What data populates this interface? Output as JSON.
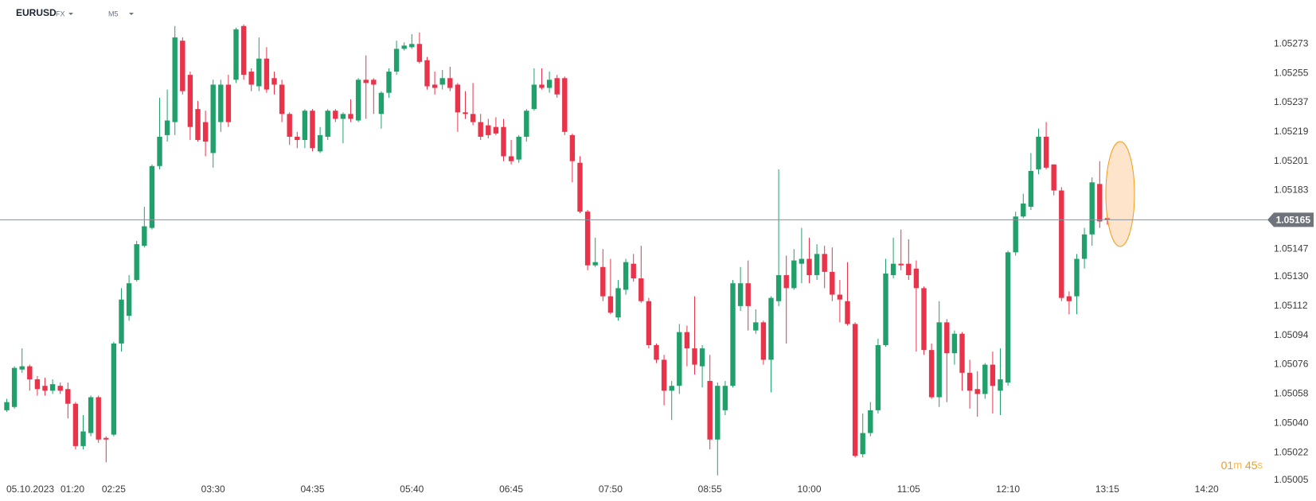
{
  "header": {
    "symbol": "EURUSD",
    "market": "FX",
    "interval": "M5"
  },
  "chart_data": {
    "type": "candlestick",
    "date_label": "05.10.2023",
    "categories": [
      null,
      "01:20",
      null,
      null,
      null,
      null,
      null,
      null,
      null,
      null,
      null,
      null,
      null,
      null,
      "02:25",
      null,
      null,
      null,
      null,
      null,
      null,
      null,
      null,
      null,
      null,
      null,
      null,
      "03:30",
      null,
      null,
      null,
      null,
      null,
      null,
      null,
      null,
      null,
      null,
      null,
      null,
      "04:35",
      null,
      null,
      null,
      null,
      null,
      null,
      null,
      null,
      null,
      null,
      null,
      null,
      "05:40",
      null,
      null,
      null,
      null,
      null,
      null,
      null,
      null,
      null,
      null,
      null,
      null,
      "06:45",
      null,
      null,
      null,
      null,
      null,
      null,
      null,
      null,
      null,
      null,
      null,
      null,
      "07:50",
      null,
      null,
      null,
      null,
      null,
      null,
      null,
      null,
      null,
      null,
      null,
      null,
      "08:55",
      null,
      null,
      null,
      null,
      null,
      null,
      null,
      null,
      null,
      null,
      null,
      null,
      "10:00",
      null,
      null,
      null,
      null,
      null,
      null,
      null,
      null,
      null,
      null,
      null,
      null,
      "11:05",
      null,
      null,
      null,
      null,
      null,
      null,
      null,
      null,
      null,
      null,
      null,
      null,
      "12:10",
      null,
      null,
      null,
      null,
      null,
      null,
      null,
      null,
      null,
      null,
      null,
      null,
      "13:15",
      null,
      null,
      null,
      null,
      null,
      null,
      null,
      null,
      null,
      null,
      null,
      null,
      "14:20"
    ],
    "open": [
      1.05048,
      1.0505,
      1.05073,
      1.05075,
      1.05067,
      1.05063,
      1.0506,
      1.05063,
      1.05061,
      1.05052,
      1.05026,
      1.05034,
      1.05056,
      1.05031,
      1.05033,
      1.05089,
      1.05106,
      1.05128,
      1.05149,
      1.0516,
      1.05198,
      1.05217,
      1.05225,
      1.05275,
      1.05254,
      1.05233,
      1.05225,
      1.05206,
      1.05225,
      1.05248,
      1.05251,
      1.05284,
      1.05256,
      1.05247,
      1.05264,
      1.05252,
      1.05248,
      1.0523,
      1.05216,
      1.05214,
      1.05232,
      1.05207,
      1.05216,
      1.05232,
      1.05227,
      1.0523,
      1.05226,
      1.05251,
      1.05251,
      1.0523,
      1.05243,
      1.05256,
      1.0527,
      1.05271,
      1.05273,
      1.05263,
      1.05248,
      1.05248,
      1.05252,
      1.05248,
      1.05231,
      1.0523,
      1.05225,
      1.05223,
      1.05222,
      1.05222,
      1.05204,
      1.05202,
      1.05216,
      1.05233,
      1.05248,
      1.05246,
      1.05252,
      1.05252,
      1.05217,
      1.052,
      1.0517,
      1.05137,
      1.05136,
      1.05118,
      1.05105,
      1.05122,
      1.05138,
      1.05129,
      1.05115,
      1.05088,
      1.05079,
      1.0506,
      1.05063,
      1.05096,
      1.05086,
      1.05075,
      1.05066,
      1.0503,
      1.05048,
      1.05063,
      1.05112,
      1.05126,
      1.05097,
      1.05102,
      1.05079,
      1.05115,
      1.05131,
      1.05123,
      1.05138,
      1.05141,
      1.05131,
      1.05144,
      1.05133,
      1.05119,
      1.05115,
      1.05101,
      1.05021,
      1.05034,
      1.05048,
      1.05088,
      1.05131,
      1.05138,
      1.05138,
      1.05135,
      1.05123,
      1.05085,
      1.05056,
      1.05102,
      1.05083,
      1.05095,
      1.05071,
      1.05061,
      1.05058,
      1.05076,
      1.0506,
      1.05065,
      1.05145,
      1.05167,
      1.05173,
      1.05196,
      1.05216,
      1.05199,
      1.05183,
      1.05118,
      1.05118,
      1.05141,
      1.05156,
      1.05187,
      1.05166,
      null,
      null,
      null,
      null,
      null,
      null,
      null,
      null,
      null,
      null,
      null,
      null,
      null
    ],
    "high": [
      1.05055,
      1.05075,
      1.05086,
      1.05076,
      1.05069,
      1.05068,
      1.05067,
      1.05065,
      1.05065,
      1.05053,
      1.05045,
      1.05057,
      1.05057,
      1.05032,
      1.0509,
      1.05123,
      1.05131,
      1.05152,
      1.05173,
      1.05199,
      1.0524,
      1.05245,
      1.05284,
      1.05277,
      1.05256,
      1.05238,
      1.05232,
      1.05251,
      1.05251,
      1.05254,
      1.05283,
      1.05285,
      1.05258,
      1.05277,
      1.05271,
      1.05256,
      1.05251,
      1.05231,
      1.05219,
      1.05233,
      1.05233,
      1.05222,
      1.05233,
      1.05233,
      1.05231,
      1.05239,
      1.05252,
      1.05266,
      1.05252,
      1.05244,
      1.05258,
      1.05275,
      1.05274,
      1.05279,
      1.0528,
      1.05265,
      1.05256,
      1.05257,
      1.05259,
      1.05249,
      1.05244,
      1.05249,
      1.0523,
      1.05227,
      1.05228,
      1.05227,
      1.05214,
      1.05217,
      1.05233,
      1.05258,
      1.05258,
      1.05256,
      1.05254,
      1.05253,
      1.05218,
      1.05204,
      1.05171,
      1.05154,
      1.05147,
      1.05141,
      1.05128,
      1.05141,
      1.05144,
      1.05149,
      1.05117,
      1.05089,
      1.05082,
      1.05066,
      1.05101,
      1.051,
      1.05118,
      1.05088,
      1.05082,
      1.05065,
      1.05066,
      1.05128,
      1.05136,
      1.0514,
      1.0511,
      1.05103,
      1.05118,
      1.05196,
      1.05143,
      1.05147,
      1.0516,
      1.05154,
      1.0515,
      1.05149,
      1.05148,
      1.05128,
      1.05139,
      1.05102,
      1.05046,
      1.05053,
      1.05092,
      1.05141,
      1.05154,
      1.05159,
      1.05153,
      1.0514,
      1.05124,
      1.05089,
      1.05115,
      1.05104,
      1.05097,
      1.05096,
      1.05079,
      1.05072,
      1.05077,
      1.05084,
      1.05086,
      1.05146,
      1.0517,
      1.05181,
      1.05206,
      1.05221,
      1.05225,
      1.05199,
      1.05185,
      1.05121,
      1.05144,
      1.0516,
      1.05191,
      1.05201,
      1.05167,
      null,
      null,
      null,
      null,
      null,
      null,
      null,
      null,
      null,
      null,
      null,
      null,
      null
    ],
    "low": [
      1.05047,
      1.05049,
      1.05071,
      1.0506,
      1.05057,
      1.05057,
      1.05058,
      1.05058,
      1.05043,
      1.05024,
      1.05024,
      1.05032,
      1.05028,
      1.05016,
      1.05032,
      1.05084,
      1.05103,
      1.05127,
      1.05148,
      1.05159,
      1.05196,
      1.05213,
      1.05217,
      1.05242,
      1.05214,
      1.05213,
      1.05204,
      1.05197,
      1.05219,
      1.05222,
      1.05249,
      1.05251,
      1.05244,
      1.05244,
      1.05243,
      1.05242,
      1.05225,
      1.05211,
      1.05209,
      1.05209,
      1.05207,
      1.05206,
      1.05214,
      1.05225,
      1.05212,
      1.05225,
      1.05225,
      1.05227,
      1.0523,
      1.05221,
      1.0524,
      1.05254,
      1.05269,
      1.0527,
      1.05261,
      1.05245,
      1.05242,
      1.05245,
      1.05244,
      1.05219,
      1.05227,
      1.05223,
      1.05214,
      1.05215,
      1.05217,
      1.05201,
      1.05199,
      1.052,
      1.05213,
      1.05232,
      1.05245,
      1.05243,
      1.0524,
      1.05217,
      1.05188,
      1.05169,
      1.05134,
      1.05136,
      1.05115,
      1.05107,
      1.05103,
      1.05119,
      1.05127,
      1.05114,
      1.05086,
      1.05077,
      1.05051,
      1.05042,
      1.05058,
      1.05075,
      1.0507,
      1.05062,
      1.05024,
      1.05008,
      1.05045,
      1.05062,
      1.05109,
      1.05097,
      1.05095,
      1.05076,
      1.05059,
      1.05112,
      1.05089,
      1.05122,
      1.05126,
      1.05126,
      1.05128,
      1.05123,
      1.05115,
      1.05102,
      1.051,
      1.05019,
      1.05019,
      1.05032,
      1.05046,
      1.05087,
      1.05129,
      1.05134,
      1.05128,
      1.05084,
      1.05082,
      1.05055,
      1.0505,
      1.05053,
      1.05076,
      1.0506,
      1.05049,
      1.05044,
      1.05055,
      1.05046,
      1.05045,
      1.05063,
      1.05143,
      1.05166,
      1.05171,
      1.05193,
      1.05196,
      1.0518,
      1.05115,
      1.05107,
      1.05107,
      1.05135,
      1.05149,
      1.0516,
      1.05162,
      null,
      null,
      null,
      null,
      null,
      null,
      null,
      null,
      null,
      null,
      null,
      null,
      null
    ],
    "close": [
      1.05053,
      1.05074,
      1.05075,
      1.05067,
      1.05061,
      1.0506,
      1.05064,
      1.0506,
      1.05052,
      1.05026,
      1.05035,
      1.05056,
      1.0503,
      1.0503,
      1.05089,
      1.05116,
      1.05126,
      1.0515,
      1.05161,
      1.05198,
      1.05216,
      1.05226,
      1.05277,
      1.05244,
      1.05222,
      1.05214,
      1.05213,
      1.05248,
      1.05248,
      1.05225,
      1.05282,
      1.05254,
      1.05248,
      1.05264,
      1.05245,
      1.05248,
      1.0523,
      1.05216,
      1.05214,
      1.05232,
      1.05209,
      1.05217,
      1.05232,
      1.05227,
      1.0523,
      1.05227,
      1.05251,
      1.05249,
      1.05248,
      1.05243,
      1.05256,
      1.0527,
      1.05272,
      1.05273,
      1.05262,
      1.05247,
      1.05246,
      1.05252,
      1.05246,
      1.05231,
      1.0523,
      1.05225,
      1.05216,
      1.05217,
      1.05218,
      1.05204,
      1.05201,
      1.05216,
      1.05232,
      1.05248,
      1.05246,
      1.05251,
      1.05242,
      1.05219,
      1.05201,
      1.0517,
      1.05137,
      1.05139,
      1.05118,
      1.05108,
      1.05123,
      1.05139,
      1.05129,
      1.05115,
      1.05088,
      1.05079,
      1.0506,
      1.05063,
      1.05096,
      1.05086,
      1.05076,
      1.05086,
      1.0503,
      1.05063,
      1.05063,
      1.05126,
      1.05126,
      1.05112,
      1.05102,
      1.05079,
      1.05117,
      1.05131,
      1.05123,
      1.0514,
      1.05141,
      1.05131,
      1.05144,
      1.05133,
      1.05119,
      1.05116,
      1.05101,
      1.0502,
      1.05034,
      1.05048,
      1.05088,
      1.05132,
      1.05138,
      1.05137,
      1.05131,
      1.05123,
      1.05085,
      1.05056,
      1.05102,
      1.05083,
      1.05095,
      1.05071,
      1.0506,
      1.05058,
      1.05076,
      1.05063,
      1.05067,
      1.05145,
      1.05167,
      1.05175,
      1.05195,
      1.05216,
      1.05197,
      1.05183,
      1.05117,
      1.05115,
      1.05141,
      1.05156,
      1.05188,
      1.05164,
      1.05165,
      null,
      null,
      null,
      null,
      null,
      null,
      null,
      null,
      null,
      null,
      null,
      null,
      null
    ],
    "up_color": "#22a06b",
    "down_color": "#e8334a",
    "ylim": [
      1.05003,
      1.053
    ],
    "yticks": [
      1.05273,
      1.05255,
      1.05237,
      1.05219,
      1.05201,
      1.05183,
      1.05147,
      {
        "value": 1.0513,
        "label": "1.05130"
      },
      1.05112,
      1.05094,
      1.05076,
      1.05058,
      {
        "value": 1.0504,
        "label": "1.05040"
      },
      1.05022,
      1.05005
    ],
    "grid": false,
    "current_price": 1.05165,
    "timer": {
      "minutes": "01",
      "minutes_unit": "m",
      "seconds": "45",
      "seconds_unit": "s"
    }
  }
}
